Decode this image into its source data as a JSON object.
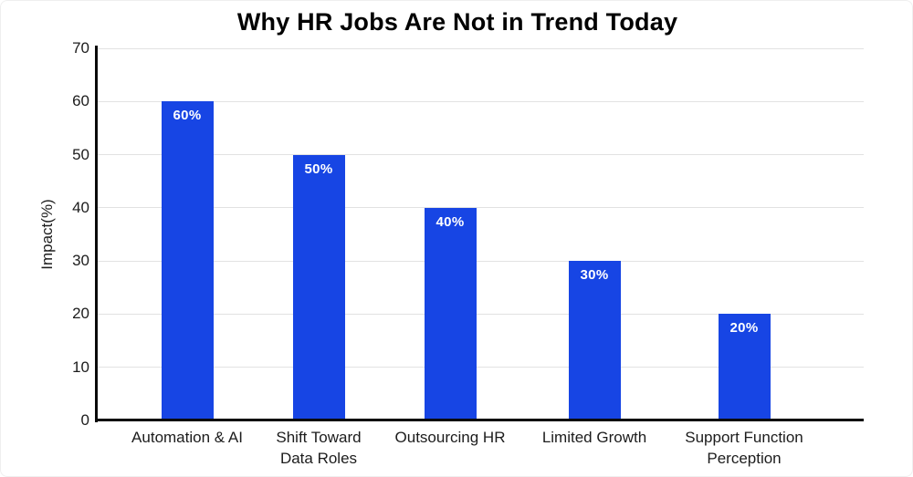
{
  "chart_data": {
    "type": "bar",
    "title": "Why HR Jobs Are Not in Trend Today",
    "categories": [
      "Automation & AI",
      "Shift Toward\nData Roles",
      "Outsourcing HR",
      "Limited Growth",
      "Support Function\nPerception"
    ],
    "values": [
      60,
      50,
      40,
      30,
      20
    ],
    "bar_labels": [
      "60%",
      "50%",
      "40%",
      "30%",
      "20%"
    ],
    "xlabel": "",
    "ylabel": "Impact(%)",
    "ylim": [
      0,
      70
    ],
    "yticks": [
      0,
      10,
      20,
      30,
      40,
      50,
      60,
      70
    ],
    "grid": "horizontal",
    "legend": "none",
    "colors": {
      "bar": "#1745e4",
      "bar_label": "#ffffff",
      "axis": "#0a0a0a",
      "gridline": "#e2e2e2",
      "tick_text": "#1c1c1c",
      "title_text": "#000000"
    }
  }
}
